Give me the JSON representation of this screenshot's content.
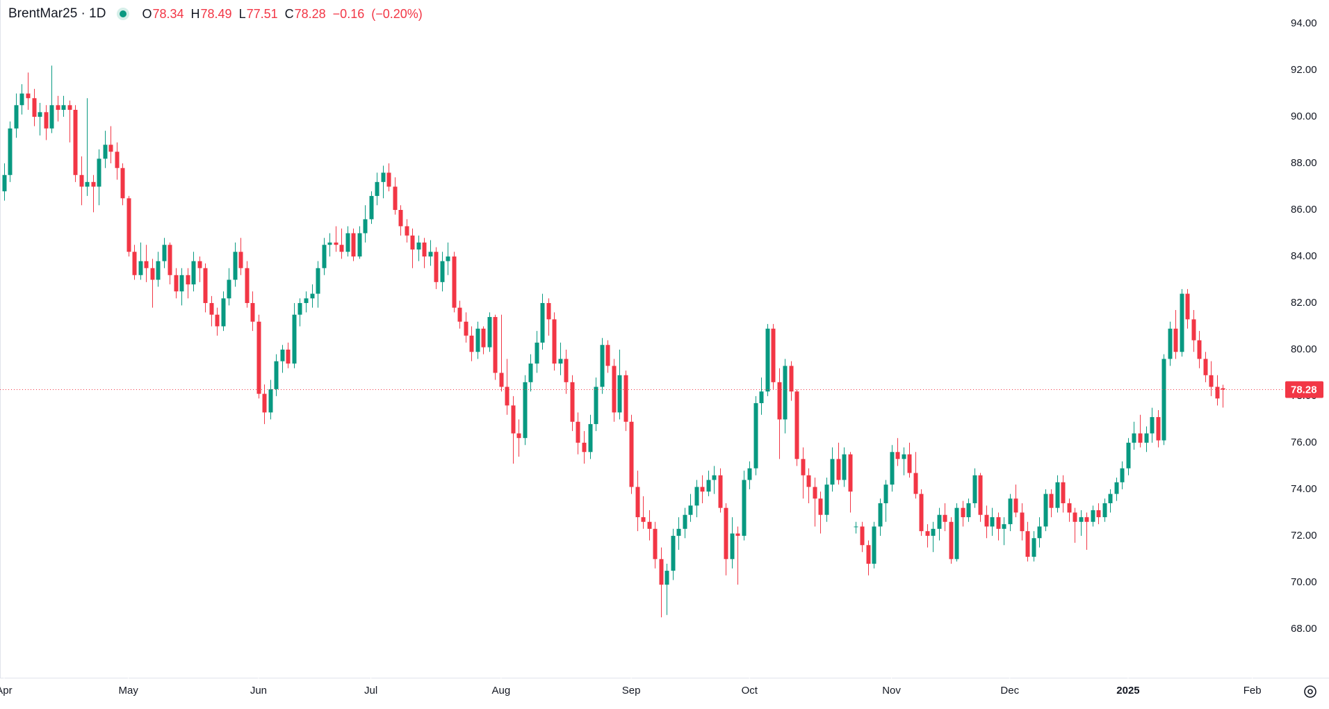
{
  "chart_data": {
    "type": "candlestick",
    "header": {
      "symbol": "BrentMar25 · 1D",
      "open_label": "O",
      "open": 78.34,
      "high_label": "H",
      "high": 78.49,
      "low_label": "L",
      "low": 77.51,
      "close_label": "C",
      "close": 78.28,
      "change": "−0.16",
      "change_pct": "(−0.20%)"
    },
    "up_color": "#089981",
    "down_color": "#f23645",
    "ylim": [
      66.8,
      94.6
    ],
    "yticks": [
      {
        "value": 68,
        "label": "68.00"
      },
      {
        "value": 70,
        "label": "70.00"
      },
      {
        "value": 72,
        "label": "72.00"
      },
      {
        "value": 74,
        "label": "74.00"
      },
      {
        "value": 76,
        "label": "76.00"
      },
      {
        "value": 78,
        "label": "78.00"
      },
      {
        "value": 80,
        "label": "80.00"
      },
      {
        "value": 82,
        "label": "82.00"
      },
      {
        "value": 84,
        "label": "84.00"
      },
      {
        "value": 86,
        "label": "86.00"
      },
      {
        "value": 88,
        "label": "88.00"
      },
      {
        "value": 90,
        "label": "90.00"
      },
      {
        "value": 92,
        "label": "92.00"
      },
      {
        "value": 94,
        "label": "94.00"
      }
    ],
    "xlim": [
      -0.7,
      215.5
    ],
    "xticks": [
      {
        "value": 0,
        "label": "Apr"
      },
      {
        "value": 21,
        "label": "May"
      },
      {
        "value": 43,
        "label": "Jun"
      },
      {
        "value": 62,
        "label": "Jul"
      },
      {
        "value": 84,
        "label": "Aug"
      },
      {
        "value": 106,
        "label": "Sep"
      },
      {
        "value": 126,
        "label": "Oct"
      },
      {
        "value": 150,
        "label": "Nov"
      },
      {
        "value": 170,
        "label": "Dec"
      },
      {
        "value": 190,
        "label": "2025"
      },
      {
        "value": 211,
        "label": "Feb"
      }
    ],
    "last_price": 78.28,
    "candles": [
      [
        86.8,
        88.0,
        86.4,
        87.5
      ],
      [
        87.5,
        89.8,
        87.2,
        89.5
      ],
      [
        89.5,
        91.0,
        89.1,
        90.5
      ],
      [
        90.5,
        91.4,
        90.1,
        91.0
      ],
      [
        91.0,
        91.9,
        90.3,
        90.8
      ],
      [
        90.8,
        91.2,
        89.6,
        90.0
      ],
      [
        90.0,
        90.6,
        89.2,
        90.2
      ],
      [
        90.2,
        90.5,
        89.0,
        89.5
      ],
      [
        89.5,
        92.2,
        89.3,
        90.5
      ],
      [
        90.5,
        90.9,
        89.8,
        90.3
      ],
      [
        90.3,
        90.9,
        90.0,
        90.5
      ],
      [
        90.5,
        90.7,
        88.9,
        90.3
      ],
      [
        90.3,
        90.5,
        87.2,
        87.5
      ],
      [
        87.5,
        88.3,
        86.2,
        87.0
      ],
      [
        87.0,
        90.8,
        86.6,
        87.2
      ],
      [
        87.2,
        87.5,
        85.9,
        87.0
      ],
      [
        87.0,
        88.6,
        86.2,
        88.2
      ],
      [
        88.2,
        89.4,
        87.8,
        88.8
      ],
      [
        88.8,
        89.6,
        88.0,
        88.5
      ],
      [
        88.5,
        88.9,
        87.3,
        87.8
      ],
      [
        87.8,
        88.0,
        86.2,
        86.5
      ],
      [
        86.5,
        86.6,
        84.0,
        84.2
      ],
      [
        84.2,
        84.5,
        83.0,
        83.2
      ],
      [
        83.2,
        84.6,
        83.0,
        83.8
      ],
      [
        83.8,
        84.5,
        82.9,
        83.5
      ],
      [
        83.5,
        83.9,
        81.8,
        83.0
      ],
      [
        83.0,
        84.2,
        82.7,
        83.8
      ],
      [
        83.8,
        84.8,
        83.5,
        84.5
      ],
      [
        84.5,
        84.6,
        82.8,
        83.2
      ],
      [
        83.2,
        83.5,
        82.2,
        82.5
      ],
      [
        82.5,
        83.5,
        81.9,
        83.2
      ],
      [
        83.2,
        83.5,
        82.2,
        82.8
      ],
      [
        82.8,
        84.2,
        82.5,
        83.8
      ],
      [
        83.8,
        84.0,
        82.9,
        83.5
      ],
      [
        83.5,
        83.7,
        81.6,
        82.0
      ],
      [
        82.0,
        82.3,
        81.0,
        81.5
      ],
      [
        81.5,
        81.8,
        80.6,
        81.0
      ],
      [
        81.0,
        82.5,
        80.8,
        82.2
      ],
      [
        82.2,
        83.5,
        81.9,
        83.0
      ],
      [
        83.0,
        84.6,
        82.7,
        84.2
      ],
      [
        84.2,
        84.8,
        83.2,
        83.5
      ],
      [
        83.5,
        83.8,
        81.8,
        82.0
      ],
      [
        82.0,
        82.5,
        80.8,
        81.2
      ],
      [
        81.2,
        81.5,
        77.9,
        78.1
      ],
      [
        78.1,
        78.5,
        76.8,
        77.3
      ],
      [
        77.3,
        78.7,
        77.0,
        78.3
      ],
      [
        78.3,
        79.8,
        78.0,
        79.5
      ],
      [
        79.5,
        80.2,
        79.0,
        80.0
      ],
      [
        80.0,
        80.3,
        79.2,
        79.4
      ],
      [
        79.4,
        82.0,
        79.2,
        81.5
      ],
      [
        81.5,
        82.2,
        81.0,
        82.0
      ],
      [
        82.0,
        82.5,
        81.6,
        82.2
      ],
      [
        82.2,
        82.8,
        81.8,
        82.4
      ],
      [
        82.4,
        83.8,
        81.8,
        83.5
      ],
      [
        83.5,
        84.8,
        83.2,
        84.5
      ],
      [
        84.5,
        85.0,
        84.0,
        84.6
      ],
      [
        84.6,
        85.3,
        84.2,
        84.5
      ],
      [
        84.5,
        85.2,
        83.9,
        84.2
      ],
      [
        84.2,
        85.3,
        84.0,
        85.0
      ],
      [
        85.0,
        85.2,
        83.8,
        84.0
      ],
      [
        84.0,
        85.3,
        83.9,
        85.0
      ],
      [
        85.0,
        86.2,
        84.6,
        85.6
      ],
      [
        85.6,
        86.8,
        85.4,
        86.6
      ],
      [
        86.6,
        87.6,
        86.2,
        87.2
      ],
      [
        87.2,
        87.9,
        86.5,
        87.6
      ],
      [
        87.6,
        88.0,
        86.8,
        87.0
      ],
      [
        87.0,
        87.4,
        85.8,
        86.0
      ],
      [
        86.0,
        86.2,
        84.9,
        85.3
      ],
      [
        85.3,
        85.6,
        84.6,
        84.9
      ],
      [
        84.9,
        85.2,
        83.5,
        84.3
      ],
      [
        84.3,
        84.9,
        83.8,
        84.6
      ],
      [
        84.6,
        84.8,
        83.5,
        84.0
      ],
      [
        84.0,
        84.7,
        83.6,
        84.2
      ],
      [
        84.2,
        84.4,
        82.6,
        82.9
      ],
      [
        82.9,
        84.2,
        82.5,
        83.8
      ],
      [
        83.8,
        84.6,
        83.2,
        84.0
      ],
      [
        84.0,
        84.2,
        81.6,
        81.8
      ],
      [
        81.8,
        82.1,
        80.9,
        81.2
      ],
      [
        81.2,
        81.6,
        80.3,
        80.6
      ],
      [
        80.6,
        81.0,
        79.5,
        79.9
      ],
      [
        79.9,
        81.2,
        79.6,
        80.9
      ],
      [
        80.9,
        81.0,
        79.8,
        80.1
      ],
      [
        80.1,
        81.6,
        79.9,
        81.4
      ],
      [
        81.4,
        81.5,
        78.7,
        79.0
      ],
      [
        79.0,
        81.5,
        78.2,
        78.4
      ],
      [
        78.4,
        79.6,
        77.2,
        77.6
      ],
      [
        77.6,
        78.0,
        75.1,
        76.4
      ],
      [
        76.4,
        77.0,
        75.4,
        76.2
      ],
      [
        76.2,
        78.9,
        75.9,
        78.6
      ],
      [
        78.6,
        79.8,
        78.2,
        79.4
      ],
      [
        79.4,
        80.8,
        79.0,
        80.3
      ],
      [
        80.3,
        82.4,
        80.0,
        82.0
      ],
      [
        82.0,
        82.2,
        80.6,
        81.3
      ],
      [
        81.3,
        81.6,
        79.1,
        79.4
      ],
      [
        79.4,
        80.3,
        78.9,
        79.6
      ],
      [
        79.6,
        80.0,
        78.1,
        78.6
      ],
      [
        78.6,
        78.9,
        76.5,
        76.9
      ],
      [
        76.9,
        77.3,
        75.5,
        76.0
      ],
      [
        76.0,
        76.5,
        75.1,
        75.6
      ],
      [
        75.6,
        77.2,
        75.3,
        76.8
      ],
      [
        76.8,
        78.8,
        76.5,
        78.4
      ],
      [
        78.4,
        80.5,
        78.1,
        80.2
      ],
      [
        80.2,
        80.4,
        79.0,
        79.3
      ],
      [
        79.3,
        79.6,
        76.9,
        77.3
      ],
      [
        77.3,
        80.0,
        77.0,
        78.9
      ],
      [
        78.9,
        79.1,
        76.5,
        76.9
      ],
      [
        76.9,
        77.2,
        73.8,
        74.1
      ],
      [
        74.1,
        74.8,
        72.2,
        72.8
      ],
      [
        72.8,
        73.7,
        72.3,
        72.6
      ],
      [
        72.6,
        73.1,
        71.8,
        72.3
      ],
      [
        72.3,
        72.6,
        70.6,
        71.0
      ],
      [
        71.0,
        71.5,
        68.5,
        69.9
      ],
      [
        69.9,
        70.8,
        68.6,
        70.5
      ],
      [
        70.5,
        72.3,
        70.1,
        72.0
      ],
      [
        72.0,
        72.8,
        71.4,
        72.3
      ],
      [
        72.3,
        73.2,
        71.9,
        72.9
      ],
      [
        72.9,
        73.8,
        72.6,
        73.3
      ],
      [
        73.3,
        74.4,
        72.8,
        74.1
      ],
      [
        74.1,
        74.6,
        73.4,
        73.9
      ],
      [
        73.9,
        74.8,
        73.7,
        74.4
      ],
      [
        74.4,
        75.0,
        73.8,
        74.6
      ],
      [
        74.6,
        74.9,
        73.0,
        73.2
      ],
      [
        73.2,
        73.4,
        70.3,
        71.0
      ],
      [
        71.0,
        72.8,
        70.6,
        72.1
      ],
      [
        72.1,
        72.4,
        69.9,
        72.0
      ],
      [
        72.0,
        74.8,
        71.8,
        74.4
      ],
      [
        74.4,
        75.2,
        74.0,
        74.9
      ],
      [
        74.9,
        78.0,
        74.6,
        77.7
      ],
      [
        77.7,
        78.8,
        77.2,
        78.2
      ],
      [
        78.2,
        81.1,
        78.0,
        80.9
      ],
      [
        80.9,
        81.1,
        78.3,
        78.6
      ],
      [
        78.6,
        79.2,
        75.3,
        77.0
      ],
      [
        77.0,
        79.6,
        76.4,
        79.3
      ],
      [
        79.3,
        79.5,
        77.8,
        78.2
      ],
      [
        78.2,
        78.3,
        75.0,
        75.3
      ],
      [
        75.3,
        75.8,
        73.6,
        74.6
      ],
      [
        74.6,
        74.9,
        73.4,
        74.1
      ],
      [
        74.1,
        74.5,
        72.4,
        73.6
      ],
      [
        73.6,
        73.9,
        72.1,
        72.9
      ],
      [
        72.9,
        74.5,
        72.6,
        74.2
      ],
      [
        74.2,
        75.8,
        73.9,
        75.3
      ],
      [
        75.3,
        76.0,
        74.2,
        74.4
      ],
      [
        74.4,
        75.8,
        74.1,
        75.5
      ],
      [
        75.5,
        75.6,
        73.0,
        73.9
      ],
      [
        72.4,
        72.6,
        72.1,
        72.4
      ],
      [
        72.4,
        72.6,
        71.3,
        71.6
      ],
      [
        71.6,
        71.8,
        70.3,
        70.8
      ],
      [
        70.8,
        72.6,
        70.6,
        72.4
      ],
      [
        72.4,
        73.6,
        72.0,
        73.4
      ],
      [
        73.4,
        74.4,
        72.6,
        74.2
      ],
      [
        74.2,
        75.9,
        73.9,
        75.6
      ],
      [
        75.6,
        76.2,
        75.0,
        75.3
      ],
      [
        75.3,
        75.8,
        74.6,
        75.5
      ],
      [
        75.5,
        76.0,
        74.5,
        74.7
      ],
      [
        74.7,
        75.6,
        73.6,
        73.8
      ],
      [
        73.8,
        74.0,
        72.0,
        72.2
      ],
      [
        72.2,
        72.5,
        71.5,
        72.0
      ],
      [
        72.0,
        72.6,
        71.3,
        72.3
      ],
      [
        72.3,
        73.2,
        71.8,
        72.9
      ],
      [
        72.9,
        73.4,
        72.2,
        72.6
      ],
      [
        72.6,
        72.8,
        70.8,
        71.0
      ],
      [
        71.0,
        73.4,
        70.9,
        73.2
      ],
      [
        73.2,
        73.5,
        72.4,
        72.8
      ],
      [
        72.8,
        73.6,
        72.6,
        73.4
      ],
      [
        73.4,
        74.9,
        73.2,
        74.6
      ],
      [
        74.6,
        74.7,
        72.6,
        72.9
      ],
      [
        72.9,
        73.3,
        71.9,
        72.4
      ],
      [
        72.4,
        73.2,
        72.0,
        72.8
      ],
      [
        72.8,
        73.0,
        71.8,
        72.3
      ],
      [
        72.3,
        72.8,
        71.6,
        72.5
      ],
      [
        72.5,
        73.8,
        72.2,
        73.6
      ],
      [
        73.6,
        74.2,
        72.8,
        73.0
      ],
      [
        73.0,
        73.4,
        71.8,
        72.2
      ],
      [
        72.2,
        72.6,
        70.9,
        71.1
      ],
      [
        71.1,
        72.2,
        70.9,
        71.9
      ],
      [
        71.9,
        72.8,
        71.5,
        72.4
      ],
      [
        72.4,
        74.0,
        72.2,
        73.8
      ],
      [
        73.8,
        74.0,
        72.8,
        73.2
      ],
      [
        73.2,
        74.6,
        73.0,
        74.3
      ],
      [
        74.3,
        74.6,
        73.0,
        73.4
      ],
      [
        73.4,
        73.6,
        72.6,
        73.0
      ],
      [
        73.0,
        73.2,
        71.7,
        72.6
      ],
      [
        72.6,
        73.1,
        72.0,
        72.8
      ],
      [
        72.8,
        73.0,
        71.4,
        72.6
      ],
      [
        72.6,
        73.3,
        72.4,
        73.1
      ],
      [
        73.1,
        73.4,
        72.5,
        72.8
      ],
      [
        72.8,
        73.6,
        72.6,
        73.4
      ],
      [
        73.4,
        74.0,
        73.0,
        73.8
      ],
      [
        73.8,
        74.5,
        73.5,
        74.3
      ],
      [
        74.3,
        75.2,
        74.0,
        74.9
      ],
      [
        74.9,
        76.2,
        74.6,
        76.0
      ],
      [
        76.0,
        76.9,
        75.7,
        76.4
      ],
      [
        76.4,
        77.2,
        75.8,
        76.0
      ],
      [
        76.0,
        76.7,
        75.6,
        76.4
      ],
      [
        76.4,
        77.5,
        76.0,
        77.1
      ],
      [
        77.1,
        77.4,
        75.8,
        76.1
      ],
      [
        76.1,
        79.8,
        75.9,
        79.6
      ],
      [
        79.6,
        81.2,
        79.3,
        80.9
      ],
      [
        80.9,
        81.7,
        79.6,
        79.9
      ],
      [
        79.9,
        82.6,
        79.7,
        82.4
      ],
      [
        82.4,
        82.6,
        80.9,
        81.3
      ],
      [
        81.3,
        81.7,
        79.9,
        80.4
      ],
      [
        80.4,
        80.8,
        79.2,
        79.6
      ],
      [
        79.6,
        79.9,
        78.6,
        78.9
      ],
      [
        78.9,
        79.5,
        78.0,
        78.4
      ],
      [
        78.4,
        78.9,
        77.6,
        77.9
      ],
      [
        78.34,
        78.49,
        77.51,
        78.28
      ]
    ]
  }
}
